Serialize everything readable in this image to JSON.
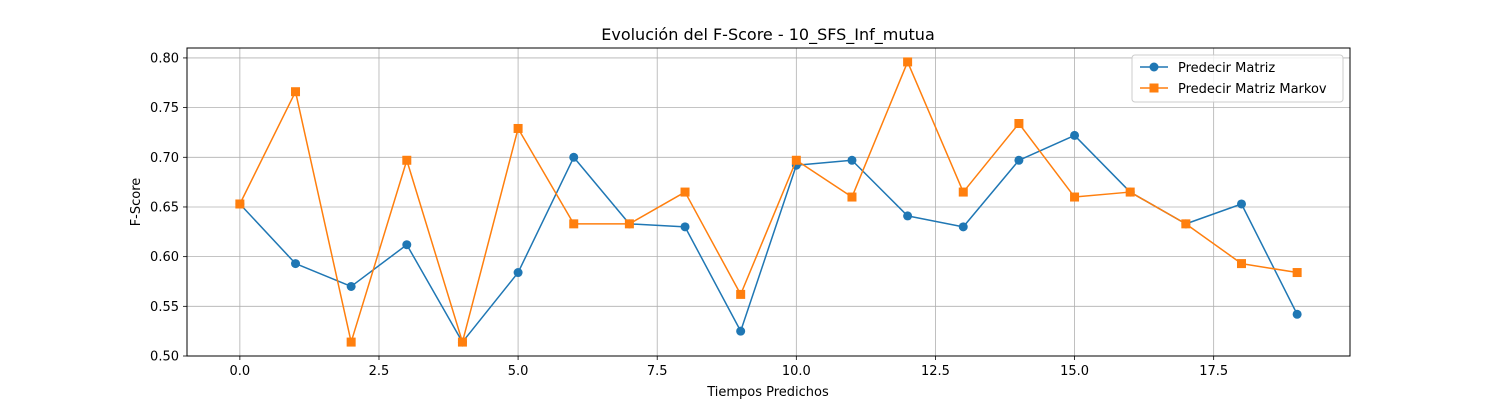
{
  "chart_data": {
    "type": "line",
    "title": "Evolución del F-Score - 10_SFS_Inf_mutua",
    "xlabel": "Tiempos Predichos",
    "ylabel": "F-Score",
    "xlim": [
      -0.95,
      19.95
    ],
    "ylim": [
      0.5,
      0.81
    ],
    "xticks": [
      0.0,
      2.5,
      5.0,
      7.5,
      10.0,
      12.5,
      15.0,
      17.5
    ],
    "xtick_labels": [
      "0.0",
      "2.5",
      "5.0",
      "7.5",
      "10.0",
      "12.5",
      "15.0",
      "17.5"
    ],
    "yticks": [
      0.5,
      0.55,
      0.6,
      0.65,
      0.7,
      0.75,
      0.8
    ],
    "ytick_labels": [
      "0.50",
      "0.55",
      "0.60",
      "0.65",
      "0.70",
      "0.75",
      "0.80"
    ],
    "grid": true,
    "legend_position": "top-right",
    "x": [
      0,
      1,
      2,
      3,
      4,
      5,
      6,
      7,
      8,
      9,
      10,
      11,
      12,
      13,
      14,
      15,
      16,
      17,
      18,
      19
    ],
    "series": [
      {
        "name": "Predecir Matriz",
        "color": "#1f77b4",
        "marker": "circle",
        "values": [
          0.653,
          0.593,
          0.57,
          0.612,
          0.514,
          0.584,
          0.7,
          0.633,
          0.63,
          0.525,
          0.692,
          0.697,
          0.641,
          0.63,
          0.697,
          0.722,
          0.665,
          0.633,
          0.653,
          0.542
        ]
      },
      {
        "name": "Predecir Matriz Markov",
        "color": "#ff7f0e",
        "marker": "square",
        "values": [
          0.653,
          0.766,
          0.514,
          0.697,
          0.514,
          0.729,
          0.633,
          0.633,
          0.665,
          0.562,
          0.697,
          0.66,
          0.796,
          0.665,
          0.734,
          0.66,
          0.665,
          0.633,
          0.593,
          0.584
        ]
      }
    ]
  }
}
